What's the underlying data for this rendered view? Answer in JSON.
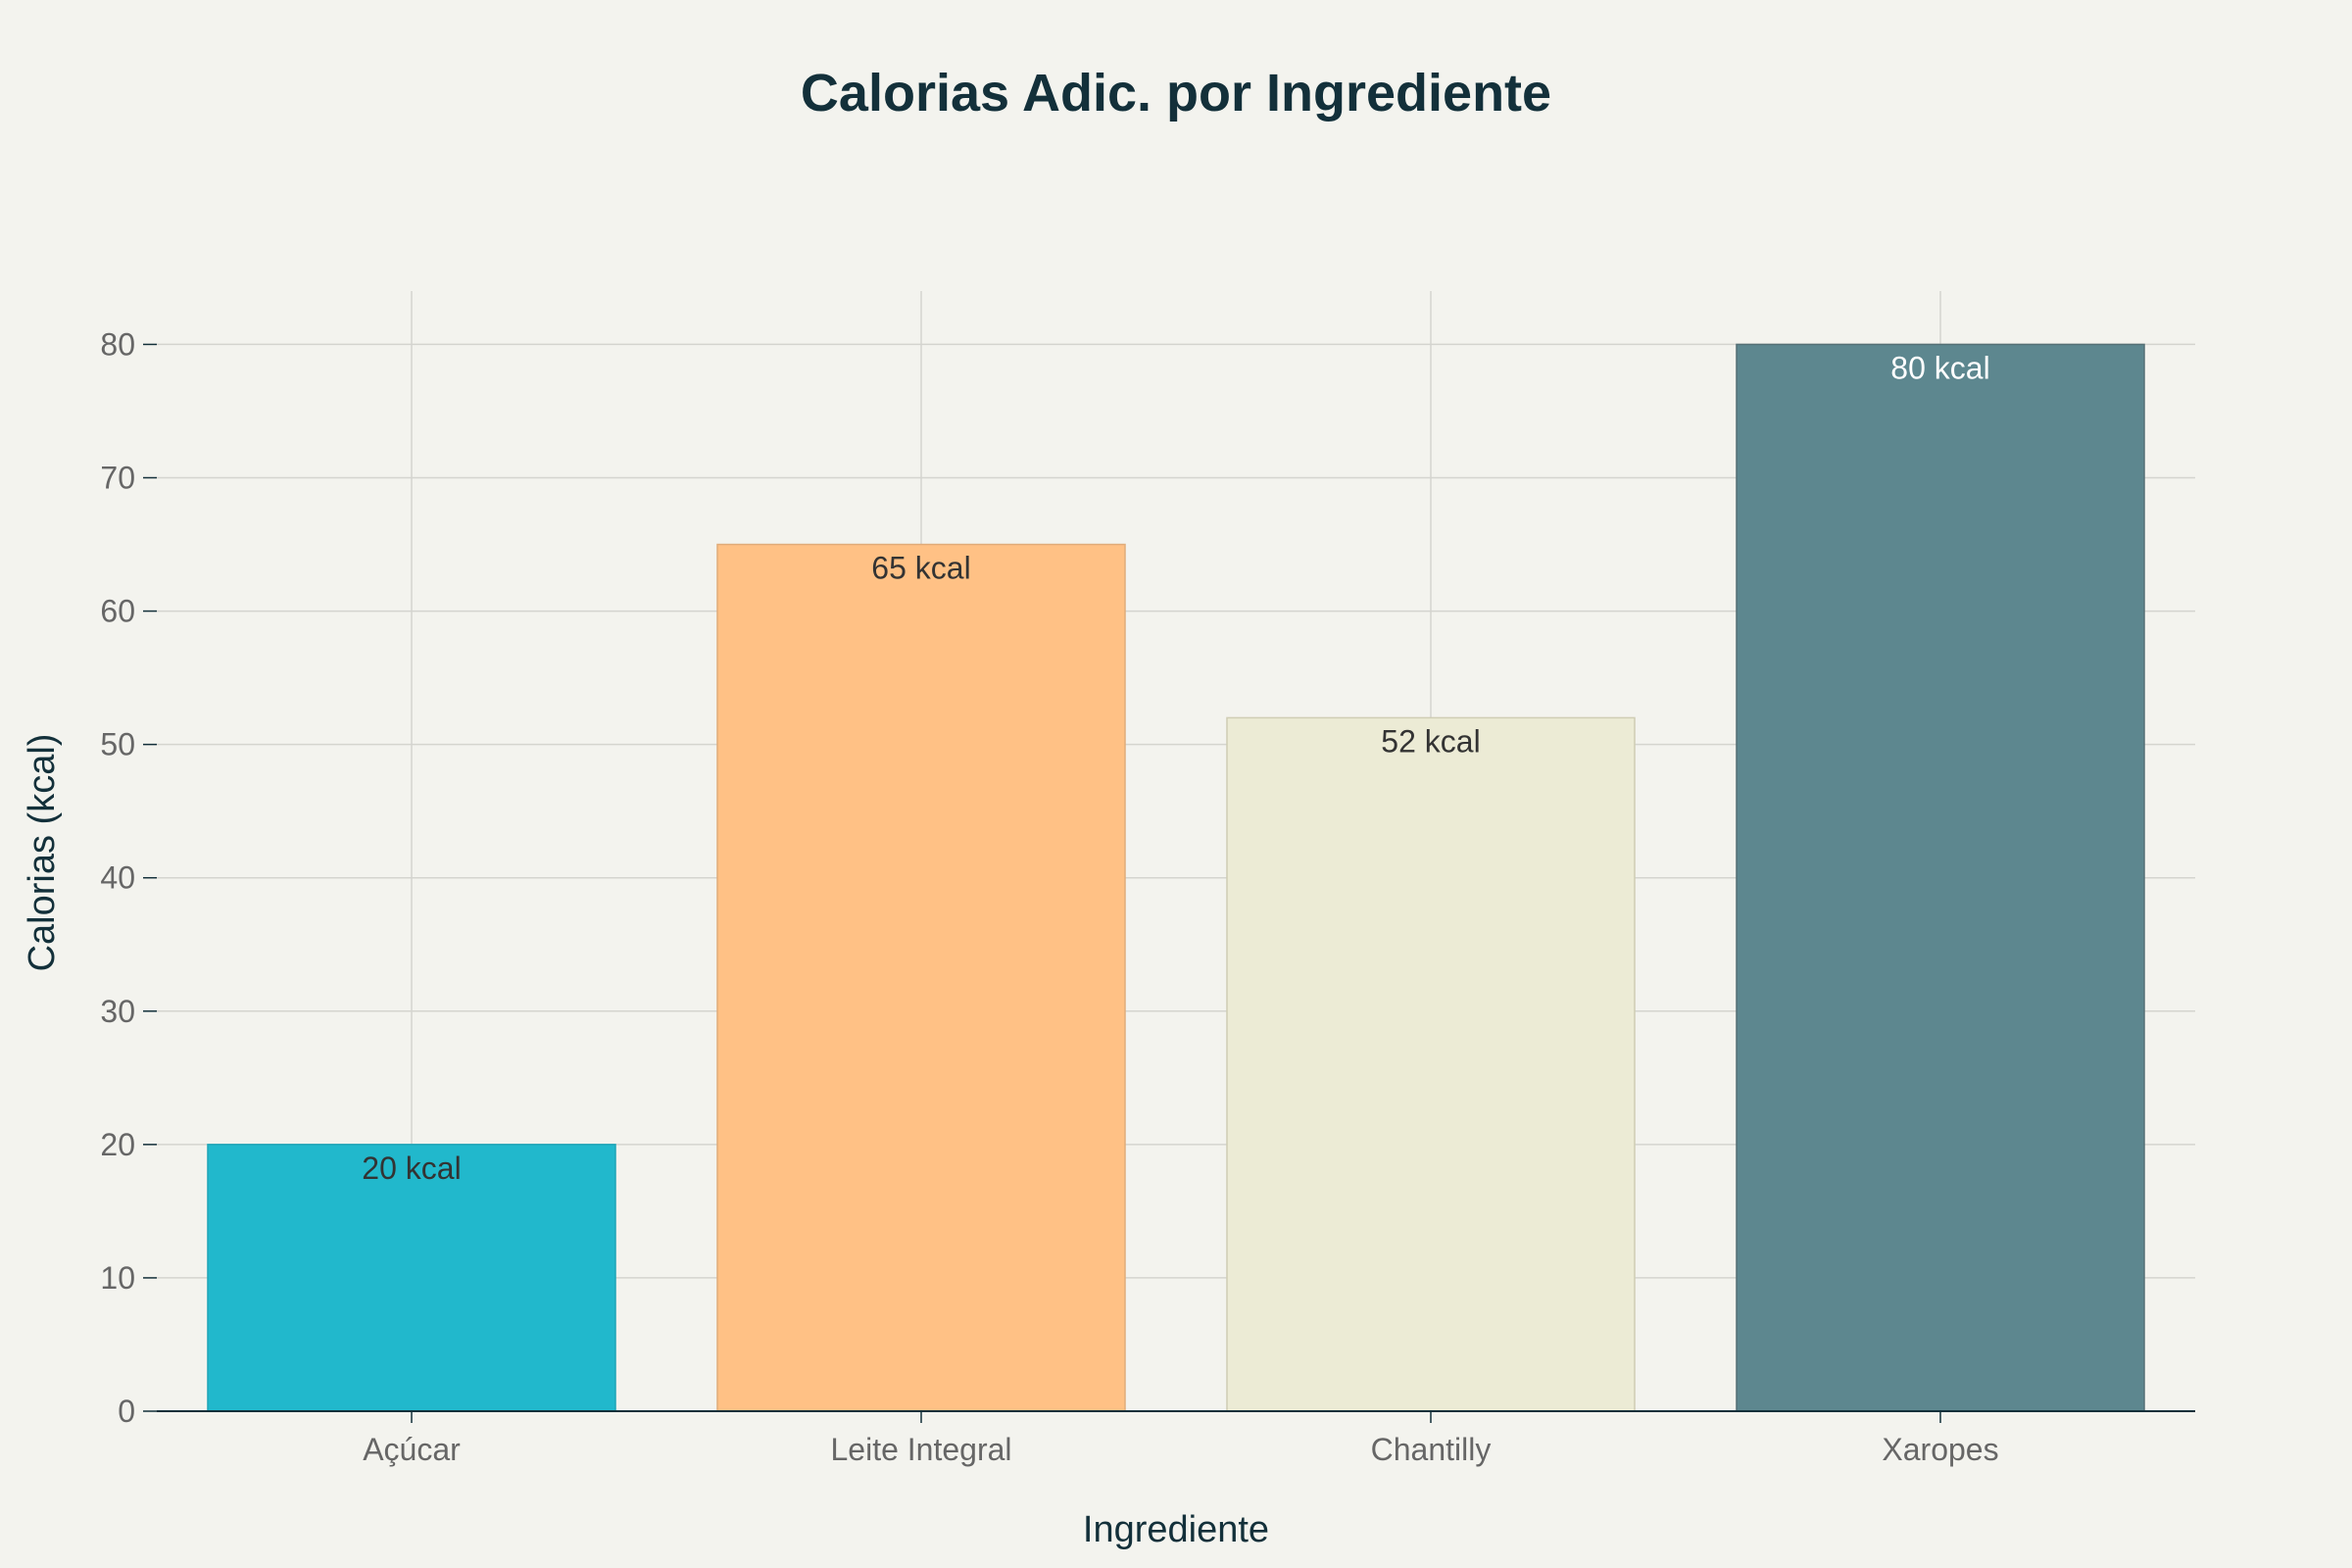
{
  "chart_data": {
    "type": "bar",
    "title": "Calorias Adic. por Ingrediente",
    "xlabel": "Ingrediente",
    "ylabel": "Calorias (kcal)",
    "categories": [
      "Açúcar",
      "Leite Integral",
      "Chantilly",
      "Xaropes"
    ],
    "values": [
      20,
      65,
      52,
      80
    ],
    "data_labels": [
      "20 kcal",
      "65 kcal",
      "52 kcal",
      "80 kcal"
    ],
    "ylim": [
      0,
      84
    ],
    "yticks": [
      0,
      10,
      20,
      30,
      40,
      50,
      60,
      70,
      80
    ],
    "grid": true,
    "legend": "none",
    "colors": [
      "#21b8cc",
      "#ffc185",
      "#ecebd5",
      "#5d878f"
    ],
    "bar_edge_colors": [
      "#1ea5b7",
      "#e0ac7a",
      "#cfcdb4",
      "#546f75"
    ],
    "label_colors": [
      "#333333",
      "#333333",
      "#333333",
      "#ffffff"
    ],
    "background": "#f3f3ee",
    "axis_color": "#13303a"
  }
}
